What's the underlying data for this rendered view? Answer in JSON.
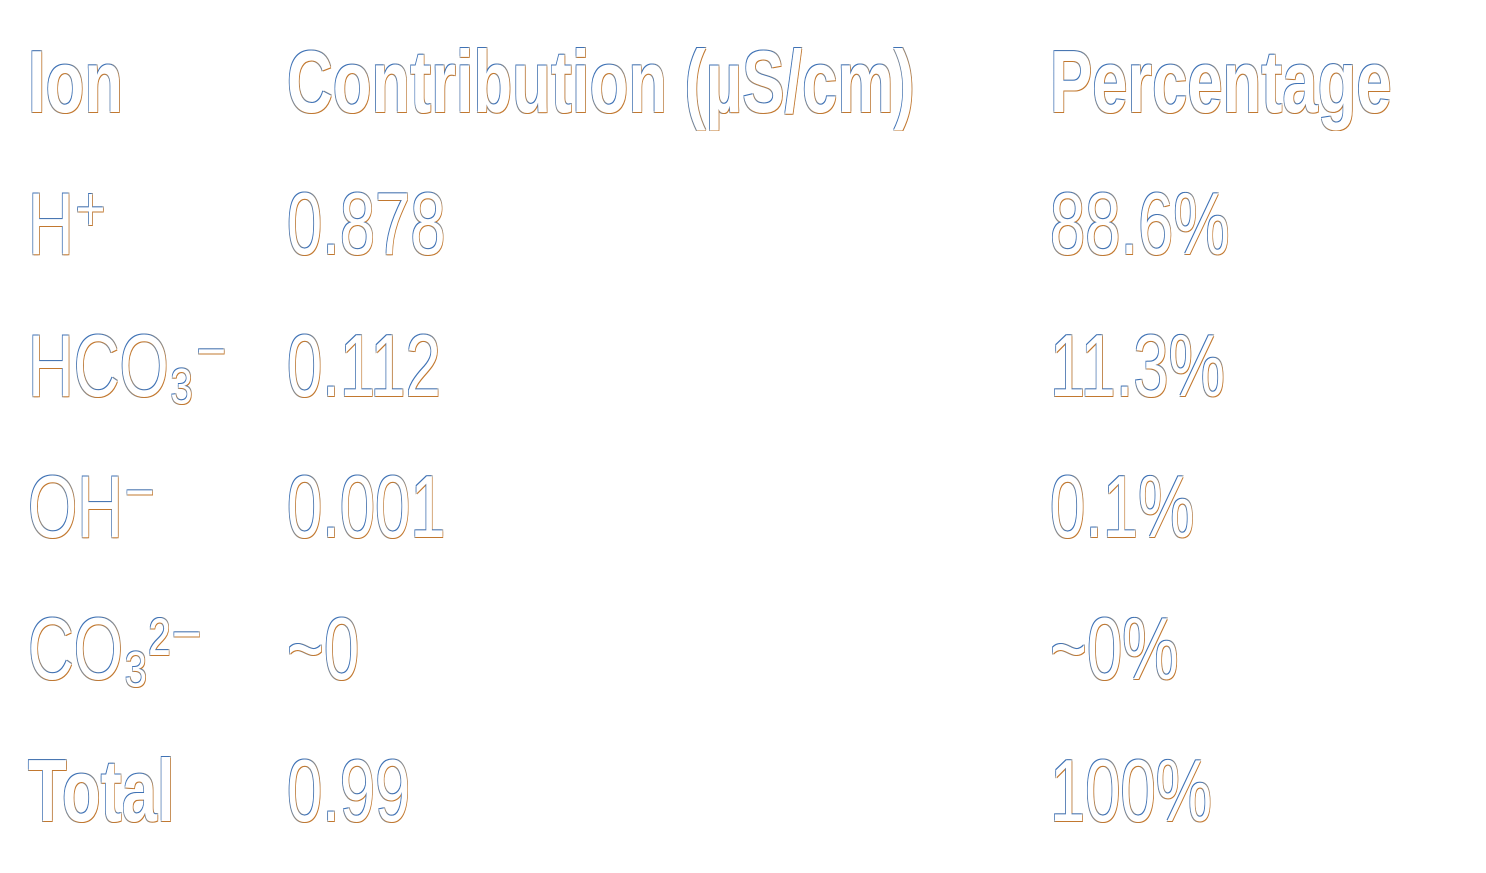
{
  "table": {
    "header": [
      "Ion",
      "Contribution (µS/cm)",
      "Percentage"
    ],
    "rows": [
      [
        "H⁺",
        "0.878",
        "88.6%"
      ],
      [
        "HCO₃⁻",
        "0.112",
        "11.3%"
      ],
      [
        "OH⁻",
        "0.001",
        "0.1%"
      ],
      [
        "CO₃²⁻",
        "~0",
        "~0%"
      ],
      [
        "Total",
        "0.99",
        "100%"
      ]
    ]
  }
}
